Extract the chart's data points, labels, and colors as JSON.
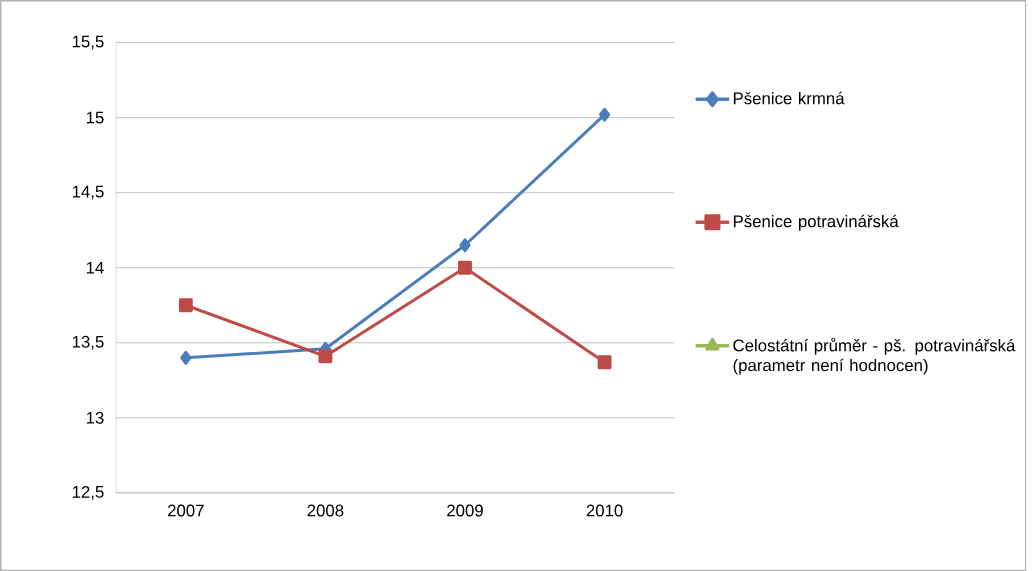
{
  "chart_data": {
    "type": "line",
    "categories": [
      "2007",
      "2008",
      "2009",
      "2010"
    ],
    "series": [
      {
        "name": "Pšenice krmná",
        "color": "#4a7ebb",
        "marker": "diamond",
        "values": [
          13.4,
          13.46,
          14.15,
          15.02
        ]
      },
      {
        "name": "Pšenice potravinářská",
        "color": "#be4b48",
        "marker": "square",
        "values": [
          13.75,
          13.41,
          14.0,
          13.37
        ]
      },
      {
        "name": "Celostátní  průměr - pš. potravinářská (parametr není hodnocen)",
        "color": "#98b954",
        "marker": "triangle",
        "values": [
          null,
          null,
          null,
          null
        ]
      }
    ],
    "ylim": [
      12.5,
      15.5
    ],
    "yticks": [
      {
        "value": 12.5,
        "label": "12,5"
      },
      13,
      {
        "value": 13.5,
        "label": "13,5"
      },
      14,
      {
        "value": 14.5,
        "label": "14,5"
      },
      15,
      {
        "value": 15.5,
        "label": "15,5"
      }
    ],
    "grid": "y",
    "legend": "right",
    "line_style": "solid"
  }
}
